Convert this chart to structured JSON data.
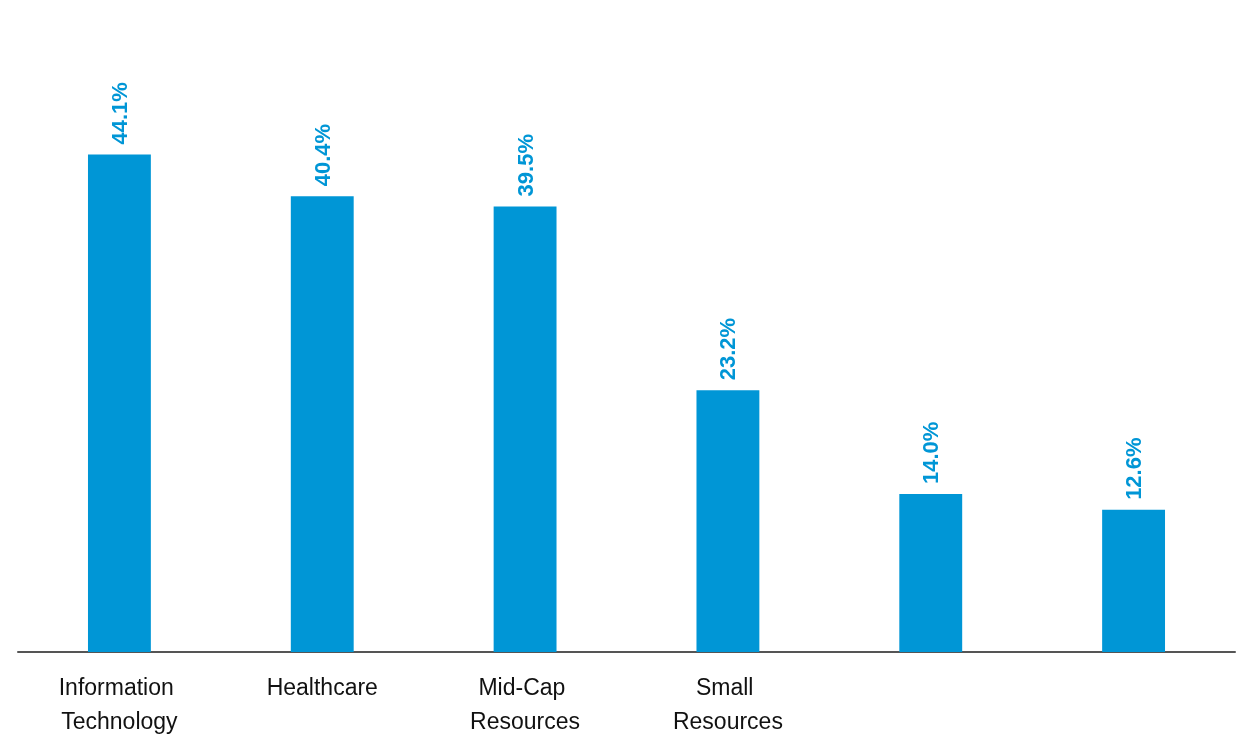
{
  "chart_data": {
    "type": "bar",
    "categories": [
      "Information Technology",
      "Healthcare",
      "Mid-Cap Resources",
      "Small Resources",
      null,
      null
    ],
    "values": [
      44.1,
      40.4,
      39.5,
      23.2,
      14.0,
      12.6
    ],
    "value_labels": [
      "44.1%",
      "40.4%",
      "39.5%",
      "23.2%",
      "14.0%",
      "12.6%"
    ],
    "color": "#0096d6"
  }
}
